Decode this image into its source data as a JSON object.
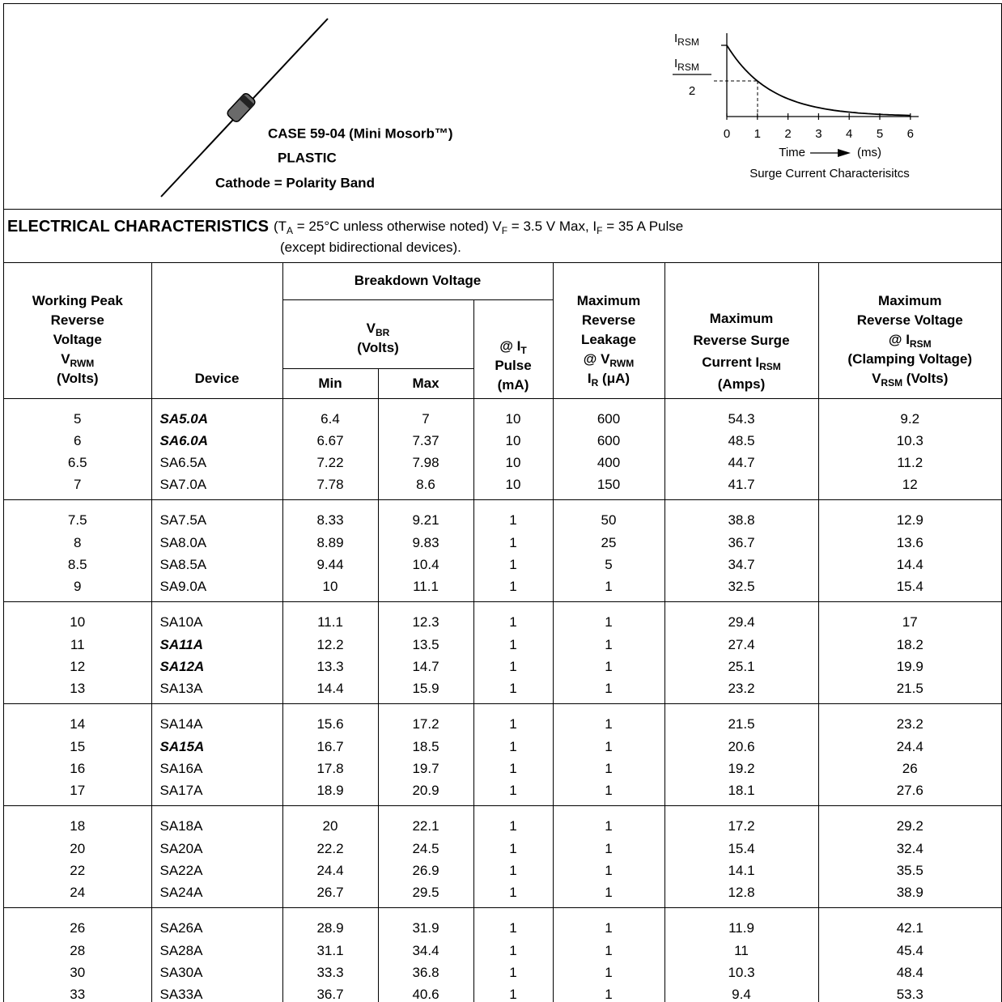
{
  "case": {
    "line1": "CASE 59-04 (Mini Mosorb™)",
    "line2": "PLASTIC",
    "line3": "Cathode = Polarity Band"
  },
  "graph": {
    "y_label": [
      "I",
      {
        "sub": "RSM"
      }
    ],
    "half_label": {
      "numerator": [
        "I",
        {
          "sub": "RSM"
        }
      ],
      "denominator": "2"
    },
    "xticks": [
      "0",
      "1",
      "2",
      "3",
      "4",
      "5",
      "6"
    ],
    "x_label": "Time",
    "x_unit": "(ms)",
    "caption": "Surge Current  Characterisitcs"
  },
  "electrical": {
    "title": "ELECTRICAL CHARACTERISTICS",
    "note": [
      [
        "(T",
        {
          "sub": "A"
        },
        " = 25°C unless otherwise noted) V",
        {
          "sub": "F"
        },
        " = 3.5 V Max, I",
        {
          "sub": "F"
        },
        " = 35 A Pulse"
      ],
      [
        "(except bidirectional devices)."
      ]
    ]
  },
  "table": {
    "header": {
      "working_peak": [
        [
          "Working Peak"
        ],
        [
          "Reverse"
        ],
        [
          "Voltage"
        ],
        [
          "V",
          {
            "sub": "RWM"
          }
        ],
        [
          "(Volts)"
        ]
      ],
      "device": [
        [
          "Device"
        ]
      ],
      "breakdown": [
        [
          "Breakdown Voltage"
        ]
      ],
      "vbr": [
        [
          "V",
          {
            "sub": "BR"
          }
        ],
        [
          "(Volts)"
        ]
      ],
      "test_current": [
        [
          "@ I",
          {
            "sub": "T"
          }
        ],
        [
          "Pulse"
        ],
        [
          "(mA)"
        ]
      ],
      "min": [
        [
          "Min"
        ]
      ],
      "max": [
        [
          "Max"
        ]
      ],
      "leakage": [
        [
          "Maximum"
        ],
        [
          "Reverse"
        ],
        [
          "Leakage"
        ],
        [
          "@ V",
          {
            "sub": "RWM"
          }
        ],
        [
          "I",
          {
            "sub": "R"
          },
          " (μA)"
        ]
      ],
      "surge": [
        [
          "Maximum"
        ],
        [
          "Reverse Surge"
        ],
        [
          "Current I",
          {
            "sub": "RSM"
          }
        ],
        [
          "(Amps)"
        ]
      ],
      "clamping": [
        [
          "Maximum"
        ],
        [
          "Reverse Voltage"
        ],
        [
          "@ I",
          {
            "sub": "RSM"
          }
        ],
        [
          "(Clamping Voltage)"
        ],
        [
          "V",
          {
            "sub": "RSM"
          },
          " (Volts)"
        ]
      ]
    },
    "groups": [
      {
        "rows": [
          {
            "cells": [
              "5",
              "SA5.0A",
              "6.4",
              "7",
              "10",
              "600",
              "54.3",
              "9.2"
            ],
            "emphasis": true
          },
          {
            "cells": [
              "6",
              "SA6.0A",
              "6.67",
              "7.37",
              "10",
              "600",
              "48.5",
              "10.3"
            ],
            "emphasis": true
          },
          {
            "cells": [
              "6.5",
              "SA6.5A",
              "7.22",
              "7.98",
              "10",
              "400",
              "44.7",
              "11.2"
            ]
          },
          {
            "cells": [
              "7",
              "SA7.0A",
              "7.78",
              "8.6",
              "10",
              "150",
              "41.7",
              "12"
            ]
          }
        ]
      },
      {
        "rows": [
          {
            "cells": [
              "7.5",
              "SA7.5A",
              "8.33",
              "9.21",
              "1",
              "50",
              "38.8",
              "12.9"
            ]
          },
          {
            "cells": [
              "8",
              "SA8.0A",
              "8.89",
              "9.83",
              "1",
              "25",
              "36.7",
              "13.6"
            ]
          },
          {
            "cells": [
              "8.5",
              "SA8.5A",
              "9.44",
              "10.4",
              "1",
              "5",
              "34.7",
              "14.4"
            ]
          },
          {
            "cells": [
              "9",
              "SA9.0A",
              "10",
              "11.1",
              "1",
              "1",
              "32.5",
              "15.4"
            ]
          }
        ]
      },
      {
        "rows": [
          {
            "cells": [
              "10",
              "SA10A",
              "11.1",
              "12.3",
              "1",
              "1",
              "29.4",
              "17"
            ]
          },
          {
            "cells": [
              "11",
              "SA11A",
              "12.2",
              "13.5",
              "1",
              "1",
              "27.4",
              "18.2"
            ],
            "emphasis": true
          },
          {
            "cells": [
              "12",
              "SA12A",
              "13.3",
              "14.7",
              "1",
              "1",
              "25.1",
              "19.9"
            ],
            "emphasis": true
          },
          {
            "cells": [
              "13",
              "SA13A",
              "14.4",
              "15.9",
              "1",
              "1",
              "23.2",
              "21.5"
            ]
          }
        ]
      },
      {
        "rows": [
          {
            "cells": [
              "14",
              "SA14A",
              "15.6",
              "17.2",
              "1",
              "1",
              "21.5",
              "23.2"
            ]
          },
          {
            "cells": [
              "15",
              "SA15A",
              "16.7",
              "18.5",
              "1",
              "1",
              "20.6",
              "24.4"
            ],
            "emphasis": true
          },
          {
            "cells": [
              "16",
              "SA16A",
              "17.8",
              "19.7",
              "1",
              "1",
              "19.2",
              "26"
            ]
          },
          {
            "cells": [
              "17",
              "SA17A",
              "18.9",
              "20.9",
              "1",
              "1",
              "18.1",
              "27.6"
            ]
          }
        ]
      },
      {
        "rows": [
          {
            "cells": [
              "18",
              "SA18A",
              "20",
              "22.1",
              "1",
              "1",
              "17.2",
              "29.2"
            ]
          },
          {
            "cells": [
              "20",
              "SA20A",
              "22.2",
              "24.5",
              "1",
              "1",
              "15.4",
              "32.4"
            ]
          },
          {
            "cells": [
              "22",
              "SA22A",
              "24.4",
              "26.9",
              "1",
              "1",
              "14.1",
              "35.5"
            ]
          },
          {
            "cells": [
              "24",
              "SA24A",
              "26.7",
              "29.5",
              "1",
              "1",
              "12.8",
              "38.9"
            ]
          }
        ]
      },
      {
        "rows": [
          {
            "cells": [
              "26",
              "SA26A",
              "28.9",
              "31.9",
              "1",
              "1",
              "11.9",
              "42.1"
            ]
          },
          {
            "cells": [
              "28",
              "SA28A",
              "31.1",
              "34.4",
              "1",
              "1",
              "11",
              "45.4"
            ]
          },
          {
            "cells": [
              "30",
              "SA30A",
              "33.3",
              "36.8",
              "1",
              "1",
              "10.3",
              "48.4"
            ]
          },
          {
            "cells": [
              "33",
              "SA33A",
              "36.7",
              "40.6",
              "1",
              "1",
              "9.4",
              "53.3"
            ]
          }
        ]
      }
    ]
  }
}
